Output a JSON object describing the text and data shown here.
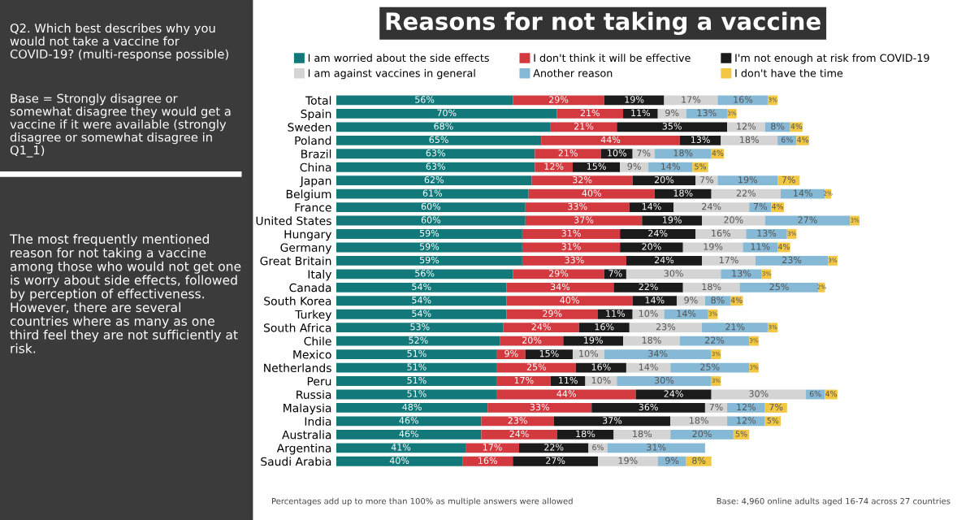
{
  "chart_data": {
    "type": "bar",
    "orientation": "horizontal",
    "stacked": true,
    "legend": "top",
    "tick_labels": "y",
    "grid": false,
    "title": "Reasons for not taking a vaccine",
    "annotations": [
      "Q2. Which best describes why you would not take a vaccine for COVID-19? (multi-response possible)",
      "Base = Strongly disagree or somewhat disagree they would get a vaccine if it were available (strongly disagree or somewhat disagree in Q1_1)",
      "The most frequently mentioned reason for not taking a vaccine among those who would not get one is worry about side effects, followed by perception of effectiveness. However, there are several countries where as many as one third feel they are not sufficiently at risk.",
      "Percentages add up to more than 100% as multiple answers were allowed",
      "Base: 4,960 online adults aged 16-74 across 27 countries"
    ],
    "categories": [
      "Total",
      "Spain",
      "Sweden",
      "Poland",
      "Brazil",
      "China",
      "Japan",
      "Belgium",
      "France",
      "United States",
      "Hungary",
      "Germany",
      "Great Britain",
      "Italy",
      "Canada",
      "South Korea",
      "Turkey",
      "South Africa",
      "Chile",
      "Mexico",
      "Netherlands",
      "Peru",
      "Russia",
      "Malaysia",
      "India",
      "Australia",
      "Argentina",
      "Saudi Arabia"
    ],
    "series": [
      {
        "name": "I am worried about the side effects",
        "color": "#12787a",
        "values": [
          56,
          70,
          68,
          65,
          63,
          63,
          62,
          61,
          60,
          60,
          59,
          59,
          59,
          56,
          54,
          54,
          54,
          53,
          52,
          51,
          51,
          51,
          51,
          48,
          46,
          46,
          41,
          40
        ],
        "value_labels": [
          "56%",
          "70%",
          "68%",
          "65%",
          "63%",
          "63%",
          "62%",
          "61%",
          "60%",
          "60%",
          "59%",
          "59%",
          "59%",
          "56%",
          "54%",
          "54%",
          "54%",
          "53%",
          "52%",
          "51%",
          "51%",
          "51%",
          "51%",
          "48%",
          "46%",
          "46%",
          "41%",
          "40%"
        ]
      },
      {
        "name": "I don't think it will be effective",
        "color": "#d23a3f",
        "values": [
          29,
          21,
          21,
          44,
          21,
          12,
          32,
          40,
          33,
          37,
          31,
          31,
          33,
          29,
          34,
          40,
          29,
          24,
          20,
          9,
          25,
          17,
          44,
          33,
          23,
          24,
          17,
          16
        ],
        "value_labels": [
          "29%",
          "21%",
          "21%",
          "44%",
          "21%",
          "12%",
          "32%",
          "40%",
          "33%",
          "37%",
          "31%",
          "31%",
          "33%",
          "29%",
          "34%",
          "40%",
          "29%",
          "24%",
          "20%",
          "9%",
          "25%",
          "17%",
          "44%",
          "33%",
          "23%",
          "24%",
          "17%",
          "16%"
        ]
      },
      {
        "name": "I'm not enough at risk from COVID-19",
        "color": "#1b1b1b",
        "values": [
          19,
          11,
          35,
          13,
          10,
          15,
          20,
          18,
          14,
          19,
          24,
          20,
          24,
          7,
          22,
          14,
          11,
          16,
          19,
          15,
          16,
          11,
          24,
          36,
          37,
          18,
          22,
          27
        ],
        "value_labels": [
          "19%",
          "11%",
          "35%",
          "13%",
          "10%",
          "15%",
          "20%",
          "18%",
          "14%",
          "19%",
          "24%",
          "20%",
          "24%",
          "7%",
          "22%",
          "14%",
          "11%",
          "16%",
          "19%",
          "15%",
          "16%",
          "11%",
          "24%",
          "36%",
          "37%",
          "18%",
          "22%",
          "27%"
        ]
      },
      {
        "name": "I am against vaccines in general",
        "color": "#d4d4d4",
        "values": [
          17,
          9,
          12,
          18,
          7,
          9,
          7,
          22,
          24,
          20,
          16,
          19,
          17,
          30,
          18,
          9,
          10,
          23,
          18,
          10,
          14,
          10,
          30,
          7,
          18,
          18,
          6,
          19
        ],
        "value_labels": [
          "17%",
          "9%",
          "12%",
          "18%",
          "7%",
          "9%",
          "7%",
          "22%",
          "24%",
          "20%",
          "16%",
          "19%",
          "17%",
          "30%",
          "18%",
          "9%",
          "10%",
          "23%",
          "18%",
          "10%",
          "14%",
          "10%",
          "30%",
          "7%",
          "18%",
          "18%",
          "6%",
          "19%"
        ]
      },
      {
        "name": "Another reason",
        "color": "#86b9d6",
        "values": [
          16,
          13,
          8,
          6,
          18,
          14,
          19,
          14,
          7,
          27,
          13,
          11,
          23,
          13,
          25,
          8,
          14,
          21,
          22,
          34,
          25,
          30,
          6,
          12,
          12,
          20,
          31,
          9
        ],
        "value_labels": [
          "16%",
          "13%",
          "8%",
          "6%",
          "18%",
          "14%",
          "19%",
          "14%",
          "7%",
          "27%",
          "13%",
          "11%",
          "23%",
          "13%",
          "25%",
          "8%",
          "14%",
          "21%",
          "22%",
          "34%",
          "25%",
          "30%",
          "6%",
          "12%",
          "12%",
          "20%",
          "31%",
          "9%"
        ]
      },
      {
        "name": "I don't have the time",
        "color": "#f2c744",
        "values": [
          3,
          3,
          4,
          4,
          4,
          5,
          7,
          2,
          4,
          3,
          3,
          4,
          3,
          3,
          2,
          4,
          3,
          3,
          3,
          3,
          3,
          3,
          4,
          7,
          5,
          5,
          null,
          8
        ],
        "value_labels": [
          "3%",
          "3%",
          "4%",
          "4%",
          "4%",
          "5%",
          "7%",
          "2%",
          "4%",
          "3%",
          "3%",
          "4%",
          "3%",
          "3%",
          "2%",
          "4%",
          "3%",
          "3%",
          "3%",
          "3%",
          "3%",
          "3%",
          "4%",
          "7%",
          "5%",
          "5%",
          null,
          "8%"
        ]
      }
    ]
  }
}
